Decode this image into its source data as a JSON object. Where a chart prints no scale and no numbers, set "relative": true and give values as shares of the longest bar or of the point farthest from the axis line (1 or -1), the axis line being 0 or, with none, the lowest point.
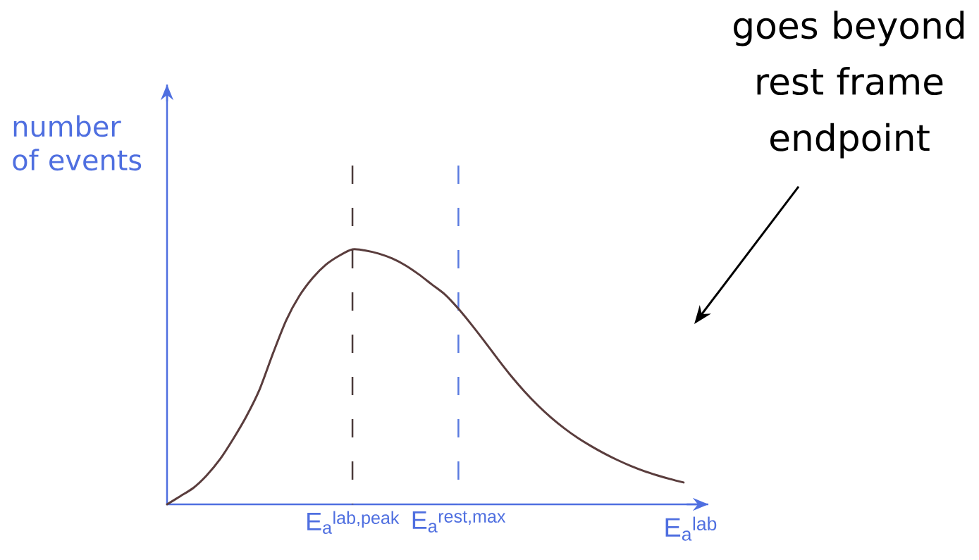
{
  "chart_data": {
    "type": "line",
    "relative": true,
    "xlabel": "E$_{a}$$^{lab}$",
    "ylabel": "number of events",
    "categories": [
      null,
      null,
      null,
      null,
      null,
      null,
      null,
      null,
      null,
      null,
      null,
      null,
      null,
      null,
      "E$_{a}$$^{lab,peak}$",
      null,
      null,
      null,
      null,
      null,
      null,
      null,
      "E$_{a}$$^{rest,max}$",
      null,
      null,
      null,
      null,
      null,
      null,
      null,
      null,
      null,
      null,
      null,
      null,
      null,
      null,
      null,
      null,
      null
    ],
    "series": [
      {
        "color": "#5a3d3d",
        "values": [
          0,
          0.032,
          0.065,
          0.114,
          0.177,
          0.257,
          0.346,
          0.452,
          0.592,
          0.722,
          0.818,
          0.888,
          0.94,
          0.975,
          1,
          0.995,
          0.983,
          0.964,
          0.937,
          0.902,
          0.862,
          0.822,
          0.767,
          0.704,
          0.637,
          0.568,
          0.502,
          0.442,
          0.388,
          0.34,
          0.298,
          0.261,
          0.229,
          0.2,
          0.174,
          0.151,
          0.131,
          0.114,
          0.099,
          0.086
        ]
      }
    ],
    "ref_lines": [
      {
        "axis": "x",
        "value": "E$_{a}$$^{lab,peak}$",
        "color": "#4a3a3a",
        "line_style": "dashed"
      },
      {
        "axis": "x",
        "value": "E$_{a}$$^{rest,max}$",
        "color": "#5a7be0",
        "line_style": "dashed"
      }
    ],
    "annotations": [
      "goes beyond rest frame endpoint"
    ],
    "marker": "none",
    "line_style": "solid"
  }
}
